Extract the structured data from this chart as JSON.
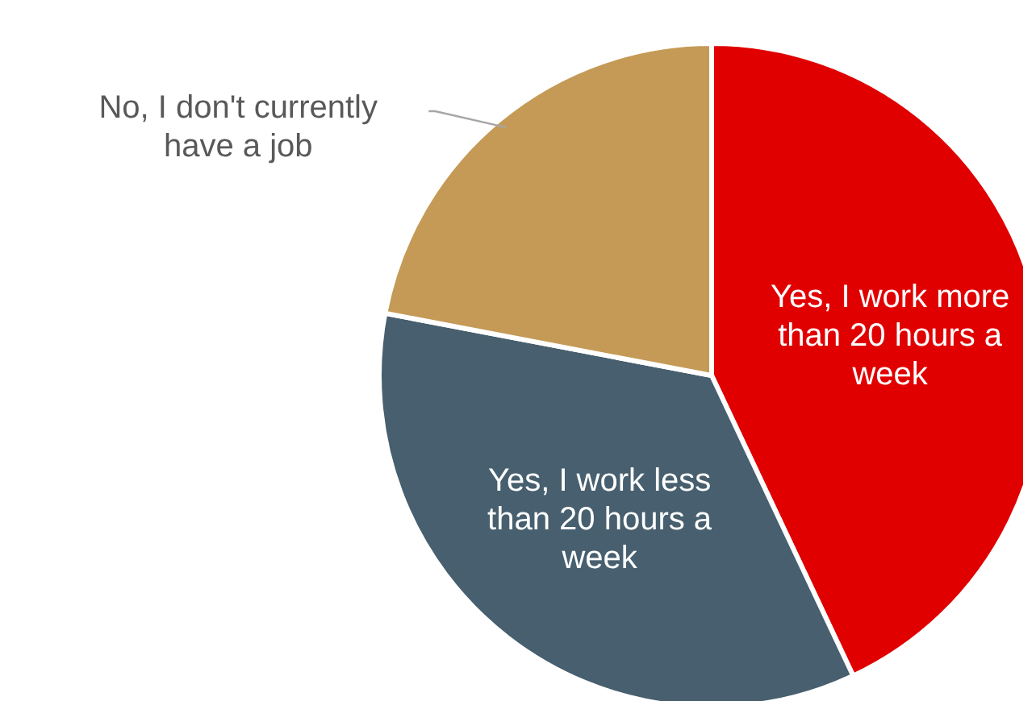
{
  "chart_data": {
    "type": "pie",
    "categories": [
      "Yes, I work more than 20 hours a week",
      "Yes, I work less than 20 hours a week",
      "No, I don't currently have a job"
    ],
    "values": [
      43,
      35,
      22
    ],
    "colors": [
      "#e00000",
      "#475f6e",
      "#c49a56"
    ],
    "legend": false
  }
}
